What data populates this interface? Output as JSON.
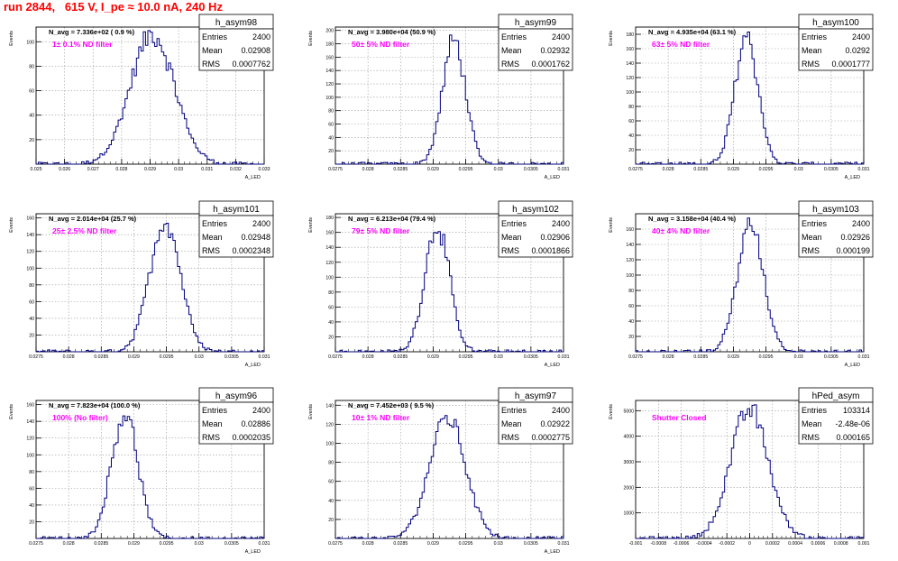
{
  "canvas_title": "run 2844,   615 V, I_pe ≈ 10.0 nA, 240 Hz",
  "colors": {
    "title": "#ff0000",
    "note": "#ff00ff",
    "histogram": "#000080",
    "grid": "#999999"
  },
  "chart_data": [
    {
      "type": "histogram",
      "name": "h_asym98",
      "stats": {
        "Entries": "2400",
        "Mean": "0.02908",
        "RMS": "0.0007762"
      },
      "n_avg": "N_avg = 7.336e+02 ( 0.9 %)",
      "note": "1± 0.1% ND filter",
      "xlabel": "A_LED",
      "ylabel": "Events",
      "xlim": [
        0.025,
        0.033
      ],
      "ylim": [
        0,
        112
      ],
      "xticks": [
        "0.025",
        "0.026",
        "0.027",
        "0.028",
        "0.029",
        "0.03",
        "0.031",
        "0.032",
        "0.033"
      ],
      "yticks": [
        "20",
        "40",
        "60",
        "80",
        "100"
      ],
      "peak": 106,
      "mean": 0.02908,
      "rms": 0.0007762,
      "grid": true
    },
    {
      "type": "histogram",
      "name": "h_asym99",
      "stats": {
        "Entries": "2400",
        "Mean": "0.02932",
        "RMS": "0.0001762"
      },
      "n_avg": "N_avg = 3.980e+04 (50.9 %)",
      "note": "50± 5% ND filter",
      "xlabel": "A_LED",
      "ylabel": "Events",
      "xlim": [
        0.0275,
        0.031
      ],
      "ylim": [
        0,
        205
      ],
      "xticks": [
        "0.0275",
        "0.028",
        "0.0285",
        "0.029",
        "0.0295",
        "0.03",
        "0.0305",
        "0.031"
      ],
      "yticks": [
        "20",
        "40",
        "60",
        "80",
        "100",
        "120",
        "140",
        "160",
        "180",
        "200"
      ],
      "peak": 185,
      "mean": 0.02932,
      "rms": 0.0001762,
      "grid": true
    },
    {
      "type": "histogram",
      "name": "h_asym100",
      "stats": {
        "Entries": "2400",
        "Mean": "0.0292",
        "RMS": "0.0001777"
      },
      "n_avg": "N_avg = 4.935e+04 (63.1 %)",
      "note": "63± 5% ND filter",
      "xlabel": "A_LED",
      "ylabel": "Events",
      "xlim": [
        0.0275,
        0.031
      ],
      "ylim": [
        0,
        190
      ],
      "xticks": [
        "0.0275",
        "0.028",
        "0.0285",
        "0.029",
        "0.0295",
        "0.03",
        "0.0305",
        "0.031"
      ],
      "yticks": [
        "20",
        "40",
        "60",
        "80",
        "100",
        "120",
        "140",
        "160",
        "180"
      ],
      "peak": 178,
      "mean": 0.0292,
      "rms": 0.0001777,
      "grid": true
    },
    {
      "type": "histogram",
      "name": "h_asym101",
      "stats": {
        "Entries": "2400",
        "Mean": "0.02948",
        "RMS": "0.0002348"
      },
      "n_avg": "N_avg = 2.014e+04 (25.7 %)",
      "note": "25± 2.5% ND filter",
      "xlabel": "A_LED",
      "ylabel": "Events",
      "xlim": [
        0.0275,
        0.031
      ],
      "ylim": [
        0,
        165
      ],
      "xticks": [
        "0.0275",
        "0.028",
        "0.0285",
        "0.029",
        "0.0295",
        "0.03",
        "0.0305",
        "0.031"
      ],
      "yticks": [
        "20",
        "40",
        "60",
        "80",
        "100",
        "120",
        "140",
        "160"
      ],
      "peak": 157,
      "mean": 0.02948,
      "rms": 0.0002348,
      "grid": true
    },
    {
      "type": "histogram",
      "name": "h_asym102",
      "stats": {
        "Entries": "2400",
        "Mean": "0.02906",
        "RMS": "0.0001866"
      },
      "n_avg": "N_avg = 6.213e+04 (79.4 %)",
      "note": "79± 5% ND filter",
      "xlabel": "A_LED",
      "ylabel": "Events",
      "xlim": [
        0.0275,
        0.031
      ],
      "ylim": [
        0,
        185
      ],
      "xticks": [
        "0.0275",
        "0.028",
        "0.0285",
        "0.029",
        "0.0295",
        "0.03",
        "0.0305",
        "0.031"
      ],
      "yticks": [
        "20",
        "40",
        "60",
        "80",
        "100",
        "120",
        "140",
        "160",
        "180"
      ],
      "peak": 170,
      "mean": 0.02906,
      "rms": 0.0001866,
      "grid": true
    },
    {
      "type": "histogram",
      "name": "h_asym103",
      "stats": {
        "Entries": "2400",
        "Mean": "0.02926",
        "RMS": "0.000199"
      },
      "n_avg": "N_avg = 3.158e+04 (40.4 %)",
      "note": "40± 4% ND filter",
      "xlabel": "A_LED",
      "ylabel": "Events",
      "xlim": [
        0.0275,
        0.031
      ],
      "ylim": [
        0,
        180
      ],
      "xticks": [
        "0.0275",
        "0.028",
        "0.0285",
        "0.029",
        "0.0295",
        "0.03",
        "0.0305",
        "0.031"
      ],
      "yticks": [
        "20",
        "40",
        "60",
        "80",
        "100",
        "120",
        "140",
        "160"
      ],
      "peak": 165,
      "mean": 0.02926,
      "rms": 0.000199,
      "grid": true
    },
    {
      "type": "histogram",
      "name": "h_asym96",
      "stats": {
        "Entries": "2400",
        "Mean": "0.02886",
        "RMS": "0.0002035"
      },
      "n_avg": "N_avg = 7.823e+04 (100.0 %)",
      "note": "100% (No filter)",
      "xlabel": "A_LED",
      "ylabel": "Events",
      "xlim": [
        0.0275,
        0.031
      ],
      "ylim": [
        0,
        165
      ],
      "xticks": [
        "0.0275",
        "0.028",
        "0.0285",
        "0.029",
        "0.0295",
        "0.03",
        "0.0305",
        "0.031"
      ],
      "yticks": [
        "20",
        "40",
        "60",
        "80",
        "100",
        "120",
        "140",
        "160"
      ],
      "peak": 150,
      "mean": 0.02886,
      "rms": 0.0002035,
      "grid": true
    },
    {
      "type": "histogram",
      "name": "h_asym97",
      "stats": {
        "Entries": "2400",
        "Mean": "0.02922",
        "RMS": "0.0002775"
      },
      "n_avg": "N_avg = 7.452e+03 ( 9.5 %)",
      "note": "10± 1% ND filter",
      "xlabel": "A_LED",
      "ylabel": "Events",
      "xlim": [
        0.0275,
        0.031
      ],
      "ylim": [
        0,
        145
      ],
      "xticks": [
        "0.0275",
        "0.028",
        "0.0285",
        "0.029",
        "0.0295",
        "0.03",
        "0.0305",
        "0.031"
      ],
      "yticks": [
        "20",
        "40",
        "60",
        "80",
        "100",
        "120",
        "140"
      ],
      "peak": 127,
      "mean": 0.02922,
      "rms": 0.0002775,
      "grid": true
    },
    {
      "type": "histogram",
      "name": "hPed_asym",
      "stats": {
        "Entries": "103314",
        "Mean": "-2.48e-06",
        "RMS": "0.000165"
      },
      "n_avg": "",
      "note": "Shutter Closed",
      "xlabel": "",
      "ylabel": "Events",
      "xlim": [
        -0.001,
        0.001
      ],
      "ylim": [
        0,
        5400
      ],
      "xticks": [
        "-0.001",
        "-0.0008",
        "-0.0006",
        "-0.0004",
        "-0.0002",
        "0",
        "0.0002",
        "0.0004",
        "0.0006",
        "0.0008",
        "0.001"
      ],
      "yticks": [
        "1000",
        "2000",
        "3000",
        "4000",
        "5000"
      ],
      "peak": 5050,
      "mean": -2.48e-06,
      "rms": 0.000165,
      "grid": true
    }
  ]
}
